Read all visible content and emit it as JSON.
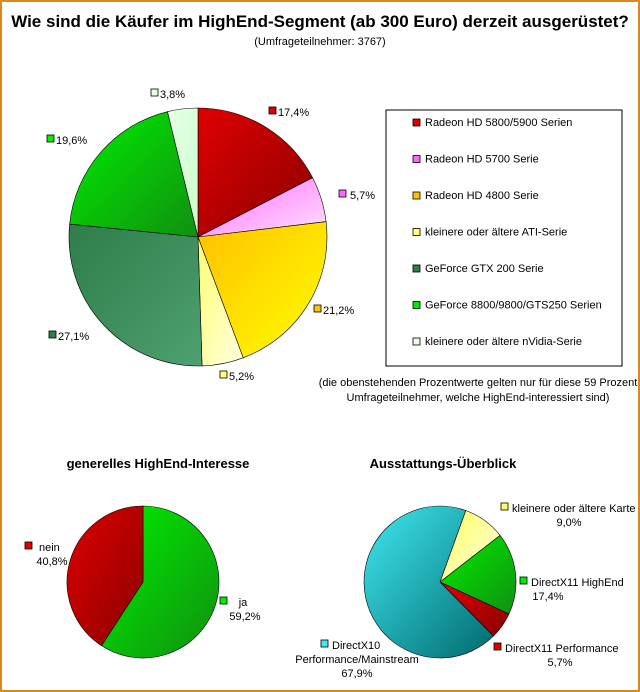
{
  "title": "Wie sind die Käufer im HighEnd-Segment (ab 300 Euro) derzeit ausgerüstet?",
  "subtitle": "(Umfrageteilnehmer: 3767)",
  "note": [
    "(die obenstehenden Prozentwerte gelten nur für diese 59 Prozent",
    "Umfrageteilnehmer, welche HighEnd-interessiert sind)"
  ],
  "chart_data": [
    {
      "type": "pie",
      "title": "",
      "legend_position": "right",
      "slices": [
        {
          "name": "Radeon HD 5800/5900 Serien",
          "value": 17.4,
          "label": "17,4%",
          "color": "#e00000",
          "color_dark": "#8a0000"
        },
        {
          "name": "Radeon HD 5700 Serie",
          "value": 5.7,
          "label": "5,7%",
          "color": "#ff66ff",
          "color_dark": "#ffe3ff"
        },
        {
          "name": "Radeon HD 4800 Serie",
          "value": 21.2,
          "label": "21,2%",
          "color": "#ffc000",
          "color_dark": "#ffff00"
        },
        {
          "name": "kleinere oder ältere ATI-Serie",
          "value": 5.2,
          "label": "5,2%",
          "color": "#ffff70",
          "color_dark": "#ffffe0"
        },
        {
          "name": "GeForce GTX 200 Serie",
          "value": 27.1,
          "label": "27,1%",
          "color": "#2e7d4a",
          "color_dark": "#4fa070"
        },
        {
          "name": "GeForce 8800/9800/GTS250 Serien",
          "value": 19.6,
          "label": "19,6%",
          "color": "#00ee00",
          "color_dark": "#109010"
        },
        {
          "name": "kleinere oder ältere nVidia-Serie",
          "value": 3.8,
          "label": "3,8%",
          "color": "#e6ffe6",
          "color_dark": "#ccffcc"
        }
      ]
    },
    {
      "type": "pie",
      "title": "generelles HighEnd-Interesse",
      "slices": [
        {
          "name": "ja",
          "value": 59.2,
          "label": "59,2%",
          "color": "#00ee00",
          "color_dark": "#109010"
        },
        {
          "name": "nein",
          "value": 40.8,
          "label": "40,8%",
          "color": "#e00000",
          "color_dark": "#8a0000"
        }
      ]
    },
    {
      "type": "pie",
      "title": "Ausstattungs-Überblick",
      "slices": [
        {
          "name": "kleinere oder ältere Karte",
          "value": 9.0,
          "label": "9,0%",
          "color": "#ffff60",
          "color_dark": "#ffffe0"
        },
        {
          "name": "DirectX11 HighEnd",
          "value": 17.4,
          "label": "17,4%",
          "color": "#00ee00",
          "color_dark": "#109010"
        },
        {
          "name": "DirectX11 Performance",
          "value": 5.7,
          "label": "5,7%",
          "color": "#e00000",
          "color_dark": "#8a0000"
        },
        {
          "name": "DirectX10 Performance/Mainstream",
          "value": 67.9,
          "label": "67,9%",
          "color": "#40e8f0",
          "color_dark": "#006a70"
        }
      ]
    }
  ]
}
